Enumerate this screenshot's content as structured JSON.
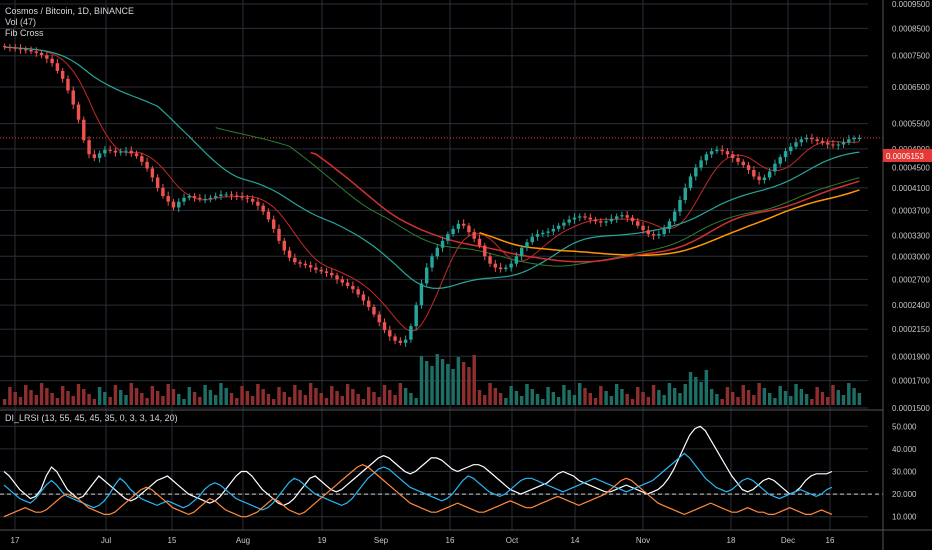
{
  "header": {
    "symbol": "Cosmos / Bitcoin, 1D, BINANCE",
    "vol": "Vol (47)",
    "fib": "Fib Cross"
  },
  "osc_label": "DI_LRSI (13, 55, 45, 45, 35, 0, 3, 3, 14, 20)",
  "price_tag": "0.0005153",
  "colors": {
    "up": "#26a69a",
    "down": "#ef5350",
    "grid": "#2a2e39",
    "price_tag_bg": "#e53935"
  },
  "chart_data": [
    {
      "type": "candlestick",
      "title": "Cosmos / Bitcoin, 1D, BINANCE",
      "x_ticks": [
        "17",
        "Jul",
        "15",
        "Aug",
        "19",
        "Sep",
        "16",
        "Oct",
        "14",
        "Nov",
        "18",
        "Dec",
        "16"
      ],
      "y_ticks": [
        "0.0009500",
        "0.0008500",
        "0.0007500",
        "0.0006500",
        "0.0005500",
        "0.0004900",
        "0.0004500",
        "0.0004100",
        "0.0003700",
        "0.0003300",
        "0.0003000",
        "0.0002700",
        "0.0002400",
        "0.0002150",
        "0.0001900",
        "0.0001700",
        "0.0001500"
      ],
      "y_scale": "log",
      "last_price": 0.0005153,
      "close": [
        0.00078,
        0.000778,
        0.000775,
        0.000772,
        0.00077,
        0.000765,
        0.00076,
        0.000752,
        0.00074,
        0.000725,
        0.0007,
        0.000675,
        0.00064,
        0.0006,
        0.00056,
        0.00051,
        0.000478,
        0.00047,
        0.00048,
        0.000488,
        0.000486,
        0.000482,
        0.000484,
        0.000486,
        0.00048,
        0.000474,
        0.000462,
        0.000448,
        0.00043,
        0.00041,
        0.000395,
        0.000385,
        0.000375,
        0.000385,
        0.000392,
        0.000395,
        0.000392,
        0.00039,
        0.00039,
        0.000392,
        0.000395,
        0.000398,
        0.000398,
        0.000396,
        0.000394,
        0.000392,
        0.00039,
        0.000385,
        0.000378,
        0.000368,
        0.000355,
        0.00034,
        0.000322,
        0.000308,
        0.000298,
        0.000292,
        0.00029,
        0.000288,
        0.000285,
        0.000282,
        0.00028,
        0.000278,
        0.000275,
        0.00027,
        0.000266,
        0.000262,
        0.000258,
        0.000252,
        0.000245,
        0.000238,
        0.00023,
        0.000222,
        0.000214,
        0.000208,
        0.000204,
        0.000202,
        0.000205,
        0.000218,
        0.00024,
        0.000265,
        0.000285,
        0.0003,
        0.000312,
        0.000322,
        0.000332,
        0.00034,
        0.000348,
        0.000345,
        0.000335,
        0.000325,
        0.000315,
        0.0003,
        0.00029,
        0.000285,
        0.000283,
        0.000285,
        0.00029,
        0.0003,
        0.000312,
        0.00032,
        0.000328,
        0.000332,
        0.000334,
        0.000336,
        0.00034,
        0.000345,
        0.00035,
        0.000355,
        0.000358,
        0.00036,
        0.000358,
        0.000355,
        0.000352,
        0.00035,
        0.000352,
        0.000356,
        0.00036,
        0.000362,
        0.000358,
        0.000352,
        0.000345,
        0.000338,
        0.000332,
        0.00033,
        0.000332,
        0.00034,
        0.000352,
        0.000368,
        0.000388,
        0.00041,
        0.000432,
        0.00045,
        0.000465,
        0.000478,
        0.000485,
        0.000488,
        0.000485,
        0.000478,
        0.00047,
        0.000462,
        0.000455,
        0.000445,
        0.000432,
        0.000425,
        0.00043,
        0.000442,
        0.000458,
        0.000472,
        0.000485,
        0.000495,
        0.000505,
        0.000512,
        0.000515,
        0.000512,
        0.000508,
        0.000504,
        0.0005,
        0.000498,
        0.0005,
        0.000505,
        0.000512,
        0.000515,
        0.000515
      ]
    },
    {
      "type": "line",
      "title": "DI_LRSI (13, 55, 45, 45, 35, 0, 3, 3, 14, 20)",
      "y_ticks": [
        "50.000",
        "40.000",
        "30.000",
        "20.000",
        "10.000"
      ],
      "ylim": [
        5,
        55
      ],
      "threshold": 20,
      "series": [
        {
          "color": "#ffffff",
          "values": [
            30,
            28,
            25,
            22,
            20,
            18,
            19,
            22,
            28,
            32,
            30,
            26,
            22,
            20,
            18,
            19,
            22,
            25,
            28,
            26,
            24,
            22,
            20,
            18,
            17,
            18,
            20,
            22,
            24,
            26,
            27,
            28,
            26,
            24,
            22,
            20,
            19,
            18,
            17,
            16,
            17,
            19,
            22,
            25,
            28,
            30,
            30,
            28,
            25,
            22,
            20,
            18,
            16,
            15,
            16,
            18,
            21,
            24,
            27,
            28,
            26,
            24,
            22,
            21,
            22,
            24,
            26,
            28,
            30,
            32,
            34,
            36,
            37,
            36,
            34,
            32,
            30,
            29,
            30,
            32,
            34,
            36,
            36,
            35,
            33,
            31,
            30,
            31,
            32,
            33,
            33,
            32,
            30,
            28,
            26,
            24,
            22,
            21,
            20,
            21,
            22,
            23,
            24,
            25,
            27,
            29,
            30,
            29,
            28,
            26,
            25,
            24,
            23,
            22,
            21,
            21,
            22,
            23,
            24,
            23,
            22,
            21,
            20,
            21,
            22,
            24,
            27,
            31,
            36,
            41,
            46,
            49,
            50,
            48,
            44,
            40,
            36,
            32,
            28,
            25,
            22,
            21,
            22,
            24,
            26,
            27,
            26,
            24,
            22,
            20,
            21,
            23,
            26,
            28,
            29,
            29,
            29,
            30
          ]
        },
        {
          "color": "#29b6f6",
          "values": [
            24,
            22,
            20,
            18,
            17,
            16,
            18,
            21,
            24,
            26,
            24,
            21,
            19,
            18,
            17,
            16,
            15,
            14,
            15,
            17,
            20,
            24,
            27,
            25,
            22,
            20,
            18,
            17,
            16,
            15,
            16,
            17,
            16,
            15,
            14,
            15,
            17,
            19,
            22,
            24,
            25,
            24,
            22,
            20,
            18,
            17,
            16,
            15,
            14,
            13,
            14,
            16,
            19,
            22,
            25,
            27,
            26,
            24,
            22,
            20,
            19,
            18,
            17,
            16,
            15,
            16,
            18,
            21,
            24,
            27,
            29,
            31,
            32,
            31,
            29,
            27,
            25,
            23,
            22,
            21,
            20,
            19,
            18,
            17,
            18,
            20,
            23,
            26,
            28,
            27,
            25,
            23,
            21,
            20,
            19,
            20,
            22,
            24,
            26,
            27,
            27,
            26,
            25,
            24,
            23,
            22,
            21,
            22,
            23,
            24,
            25,
            26,
            27,
            26,
            25,
            24,
            23,
            22,
            21,
            22,
            23,
            24,
            25,
            26,
            28,
            30,
            32,
            34,
            36,
            38,
            36,
            33,
            30,
            27,
            25,
            23,
            22,
            21,
            22,
            24,
            26,
            27,
            26,
            24,
            22,
            20,
            19,
            18,
            19,
            20,
            21,
            22,
            21,
            20,
            19,
            20,
            22,
            23
          ]
        },
        {
          "color": "#ff8a3d",
          "values": [
            10,
            11,
            12,
            13,
            14,
            13,
            12,
            12,
            13,
            15,
            17,
            19,
            20,
            19,
            18,
            16,
            14,
            13,
            12,
            11,
            11,
            12,
            14,
            16,
            18,
            20,
            22,
            23,
            22,
            20,
            18,
            16,
            14,
            13,
            12,
            11,
            12,
            14,
            16,
            18,
            17,
            15,
            13,
            12,
            11,
            10,
            10,
            11,
            12,
            14,
            16,
            18,
            17,
            15,
            13,
            12,
            11,
            12,
            14,
            16,
            18,
            20,
            22,
            24,
            26,
            28,
            30,
            32,
            33,
            32,
            30,
            28,
            26,
            24,
            22,
            20,
            18,
            16,
            15,
            14,
            13,
            12,
            12,
            13,
            14,
            15,
            16,
            15,
            14,
            13,
            12,
            12,
            13,
            14,
            15,
            16,
            17,
            16,
            15,
            14,
            14,
            15,
            16,
            17,
            18,
            19,
            18,
            17,
            16,
            15,
            16,
            17,
            18,
            19,
            20,
            22,
            24,
            26,
            27,
            26,
            24,
            22,
            20,
            18,
            16,
            15,
            14,
            13,
            12,
            11,
            12,
            13,
            14,
            15,
            16,
            15,
            14,
            13,
            12,
            12,
            13,
            14,
            13,
            12,
            12,
            11,
            11,
            12,
            13,
            14,
            13,
            12,
            11,
            11,
            12,
            13,
            12,
            11
          ]
        }
      ]
    }
  ]
}
